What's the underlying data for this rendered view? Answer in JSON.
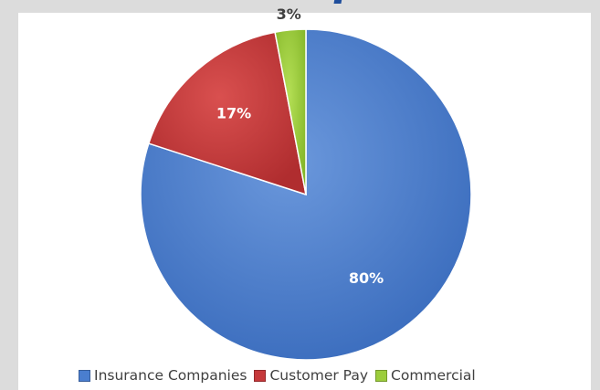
{
  "chart_data": {
    "type": "pie",
    "title": "",
    "categories": [
      "Insurance Companies",
      "Customer Pay",
      "Commercial"
    ],
    "values": [
      80,
      17,
      3
    ],
    "data_labels": [
      "80%",
      "17%",
      "3%"
    ],
    "colors": [
      "#4a7ecf",
      "#c6393b",
      "#9ccd3c"
    ],
    "legend_position": "bottom",
    "start_angle": "12 o'clock, clockwise"
  }
}
